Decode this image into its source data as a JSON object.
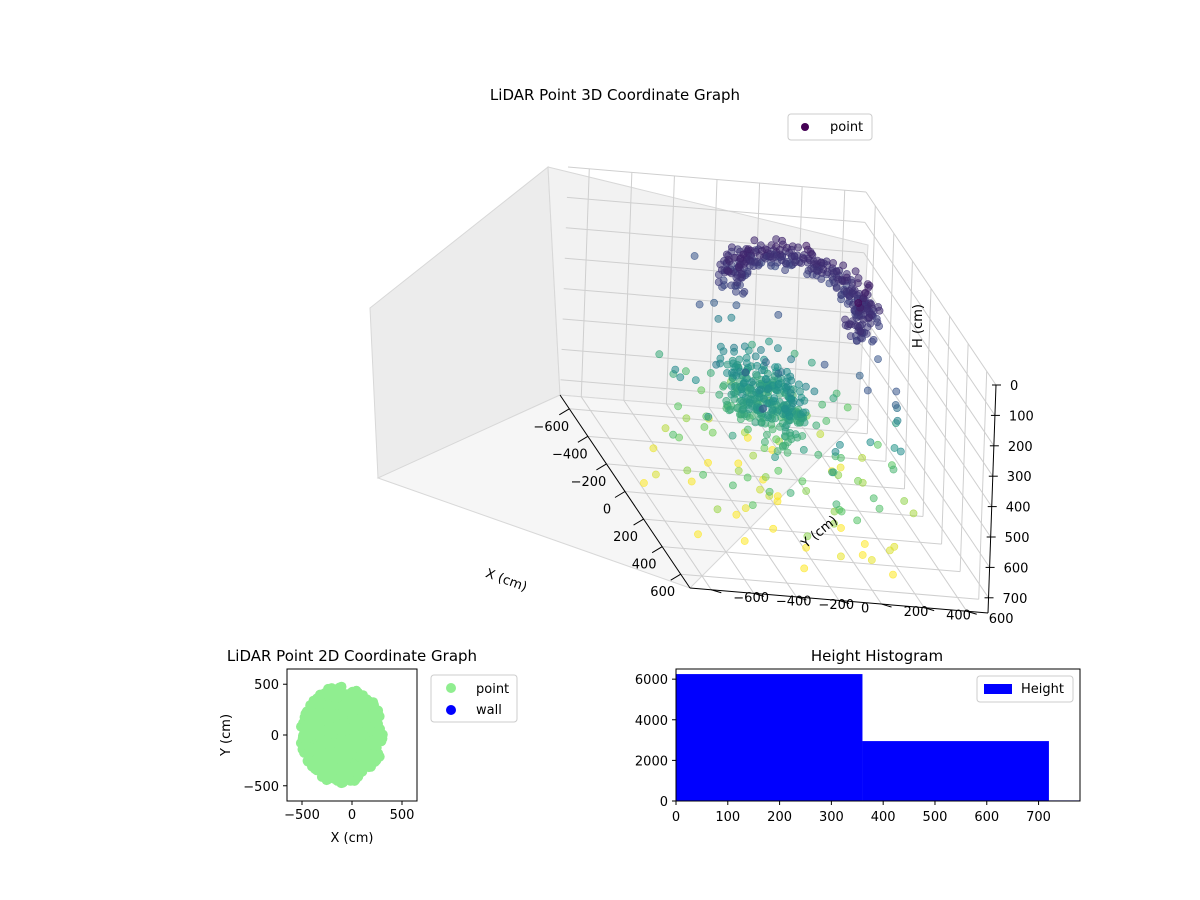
{
  "colors": {
    "viridis_dark": "#440154",
    "viridis_mid": "#3b528b",
    "viridis_teal": "#21918c",
    "viridis_green": "#5ec962",
    "viridis_yellow": "#fde725",
    "point_2d": "#90ee90",
    "wall": "#0000ff",
    "hist": "#0000ff",
    "pane": "#f2f2f2",
    "grid": "#cfcfcf"
  },
  "chart_data": [
    {
      "id": "scatter3d",
      "type": "scatter",
      "title": "LiDAR Point 3D Coordinate Graph",
      "xlabel": "X (cm)",
      "ylabel": "Y (cm)",
      "zlabel": "H (cm)",
      "xlim": [
        -700,
        700
      ],
      "ylim": [
        -700,
        700
      ],
      "zlim": [
        0,
        750
      ],
      "z_inverted": true,
      "x_ticks": [
        "−600",
        "−400",
        "−200",
        "0",
        "200",
        "400",
        "600"
      ],
      "y_ticks": [
        "−600",
        "−400",
        "−200",
        "0",
        "200",
        "400",
        "600"
      ],
      "z_ticks": [
        "0",
        "100",
        "200",
        "300",
        "400",
        "500",
        "600",
        "700"
      ],
      "x_tick_values": [
        -600,
        -400,
        -200,
        0,
        200,
        400,
        600
      ],
      "y_tick_values": [
        -600,
        -400,
        -200,
        0,
        200,
        400,
        600
      ],
      "z_tick_values": [
        0,
        100,
        200,
        300,
        400,
        500,
        600,
        700
      ],
      "legend": [
        "point"
      ],
      "legend_position": "upper-right",
      "colormap": "viridis",
      "series": [
        {
          "name": "point",
          "clusters": [
            {
              "shape": "ring",
              "center": [
                -150,
                150
              ],
              "radius": 320,
              "z": 120,
              "spread_z": 25,
              "count": 320
            },
            {
              "shape": "blob",
              "center": [
                -50,
                -50
              ],
              "radius": 250,
              "z": 420,
              "spread_z": 40,
              "count": 300
            },
            {
              "shape": "scatter",
              "center": [
                0,
                0
              ],
              "radius": 600,
              "z": 520,
              "spread_z": 180,
              "count": 150
            }
          ]
        }
      ]
    },
    {
      "id": "scatter2d",
      "type": "scatter",
      "title": "LiDAR Point 2D Coordinate Graph",
      "xlabel": "X (cm)",
      "ylabel": "Y (cm)",
      "xlim": [
        -650,
        650
      ],
      "ylim": [
        -650,
        650
      ],
      "x_ticks": [
        "−500",
        "0",
        "500"
      ],
      "y_ticks": [
        "500",
        "0",
        "−500"
      ],
      "x_tick_values": [
        -500,
        0,
        500
      ],
      "y_tick_values": [
        500,
        0,
        -500
      ],
      "legend": [
        "point",
        "wall"
      ],
      "legend_position": "outside-right",
      "series": [
        {
          "name": "point",
          "center": [
            -100,
            0
          ],
          "radius": 420,
          "count": 650
        },
        {
          "name": "wall",
          "count": 0
        }
      ]
    },
    {
      "id": "histogram",
      "type": "bar",
      "title": "Height Histogram",
      "xlabel": "",
      "ylabel": "",
      "xlim": [
        0,
        780
      ],
      "ylim": [
        0,
        6500
      ],
      "bins": [
        {
          "x0": 0,
          "x1": 360,
          "value": 6250
        },
        {
          "x0": 360,
          "x1": 720,
          "value": 2950
        },
        {
          "x0": 720,
          "x1": 780,
          "value": 30
        }
      ],
      "x_ticks": [
        "0",
        "100",
        "200",
        "300",
        "400",
        "500",
        "600",
        "700"
      ],
      "y_ticks": [
        "0",
        "2000",
        "4000",
        "6000"
      ],
      "x_tick_values": [
        0,
        100,
        200,
        300,
        400,
        500,
        600,
        700
      ],
      "y_tick_values": [
        0,
        2000,
        4000,
        6000
      ],
      "legend": [
        "Height"
      ],
      "legend_position": "upper-right"
    }
  ]
}
